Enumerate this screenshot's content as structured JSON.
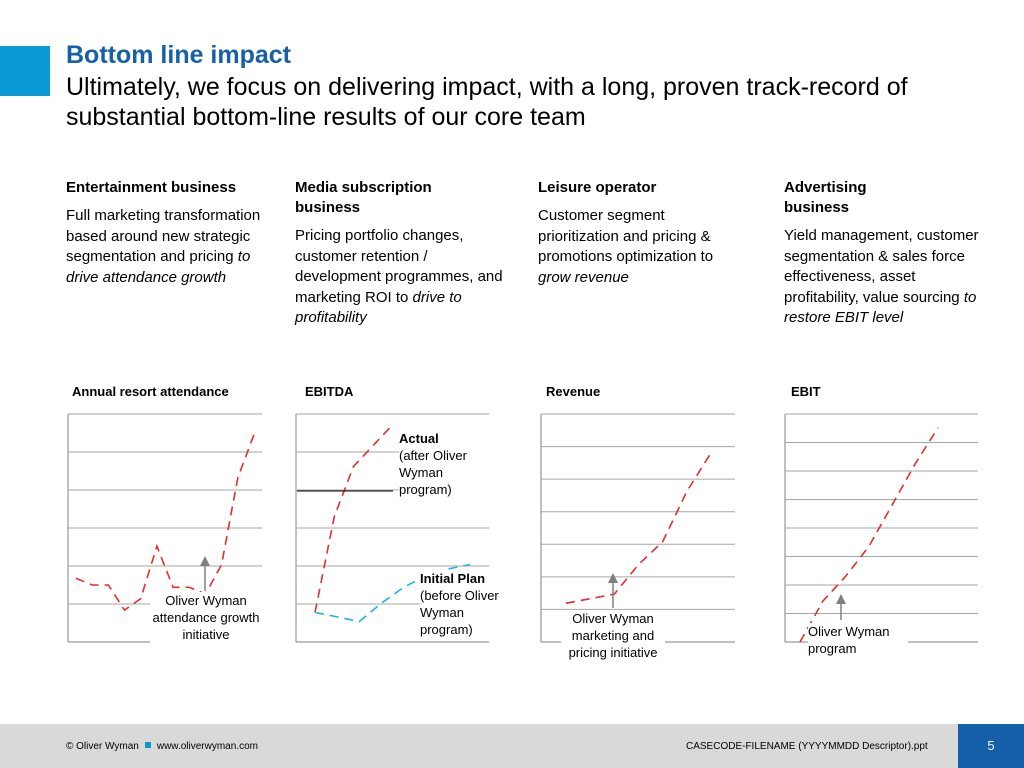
{
  "header": {
    "title": "Bottom line impact",
    "subtitle": "Ultimately, we focus on delivering impact, with a long, proven track-record of substantial bottom-line results of our core team"
  },
  "columns": [
    {
      "heading": "Entertainment business",
      "desc_plain": "Full marketing transformation based around new strategic segmentation and pricing",
      "desc_italic": "to drive attendance growth"
    },
    {
      "heading": "Media subscription business",
      "desc_plain": "Pricing portfolio changes, customer retention / development programmes, and marketing ROI to",
      "desc_italic": "drive to profitability"
    },
    {
      "heading": "Leisure operator",
      "desc_plain": "Customer segment prioritization and pricing & promotions optimization to",
      "desc_italic": "grow revenue"
    },
    {
      "heading": "Advertising business",
      "desc_plain": "Yield management, customer segmentation & sales force effectiveness, asset profitability, value sourcing",
      "desc_italic": "to restore EBIT level"
    }
  ],
  "charts": [
    {
      "label": "Annual resort attendance",
      "note": "Oliver Wyman attendance growth initiative"
    },
    {
      "label": "EBITDA",
      "actual_title": "Actual",
      "actual_sub": "(after Oliver Wyman program)",
      "plan_title": "Initial Plan",
      "plan_sub": "(before Oliver Wyman program)"
    },
    {
      "label": "Revenue",
      "note": "Oliver Wyman marketing and pricing initiative"
    },
    {
      "label": "EBIT",
      "note": "Oliver Wyman program"
    }
  ],
  "chart_data": [
    {
      "type": "line",
      "title": "Annual resort attendance",
      "series": [
        {
          "style": "dashed-red",
          "values": [
            0.28,
            0.25,
            0.25,
            0.14,
            0.19,
            0.42,
            0.24,
            0.24,
            0.21,
            0.34,
            0.72,
            0.91
          ]
        }
      ],
      "grid": true
    },
    {
      "type": "line",
      "title": "EBITDA",
      "series": [
        {
          "name": "Actual",
          "style": "dashed-red",
          "values": [
            0.13,
            0.55,
            0.77,
            0.86,
            0.95
          ]
        },
        {
          "name": "Initial Plan",
          "style": "dashed-cyan",
          "values": [
            0.13,
            0.11,
            0.09,
            0.17,
            0.24,
            0.29,
            0.32,
            0.34
          ]
        }
      ],
      "grid": true
    },
    {
      "type": "line",
      "title": "Revenue",
      "series": [
        {
          "style": "dashed-red",
          "values": [
            0.17,
            0.19,
            0.21,
            0.34,
            0.44,
            0.66,
            0.83
          ]
        }
      ],
      "grid": true
    },
    {
      "type": "line",
      "title": "EBIT",
      "series": [
        {
          "style": "dashed-red",
          "values": [
            0.0,
            0.18,
            0.29,
            0.42,
            0.6,
            0.78,
            0.94
          ]
        }
      ],
      "grid": true
    }
  ],
  "footer": {
    "copyright": "© Oliver Wyman",
    "url": "www.oliverwyman.com",
    "filename": "CASECODE-FILENAME (YYYYMMDD Descriptor).ppt",
    "page_number": "5"
  },
  "colors": {
    "title_blue": "#1560a8",
    "accent_cyan": "#0a9ad6",
    "line_red": "#e0302a",
    "line_cyan": "#19b7e3",
    "footer_gray": "#d9d9d9"
  }
}
